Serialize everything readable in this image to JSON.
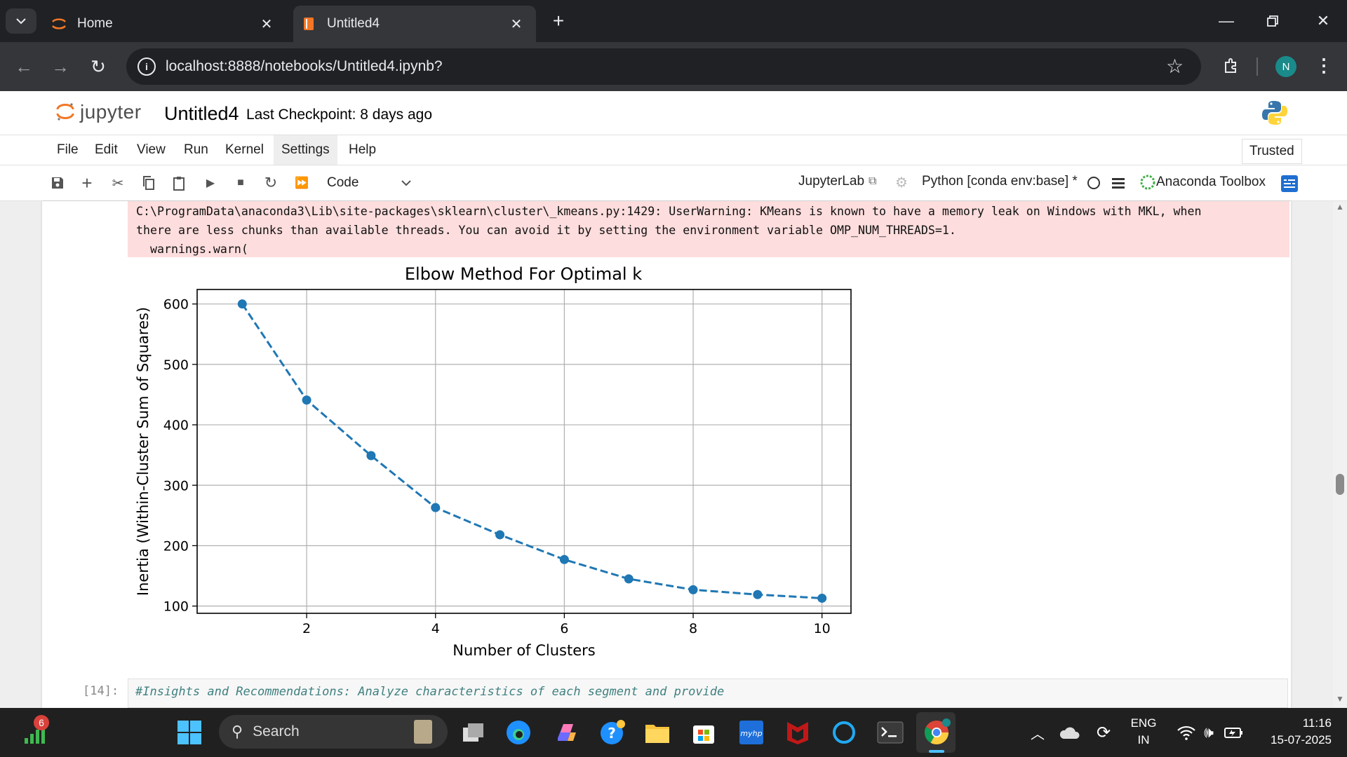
{
  "browser": {
    "tabs": [
      {
        "label": "Home",
        "active": false
      },
      {
        "label": "Untitled4",
        "active": true
      }
    ],
    "url": "localhost:8888/notebooks/Untitled4.ipynb?",
    "profile_initial": "N"
  },
  "jupyter": {
    "logo_text": "jupyter",
    "notebook_title": "Untitled4",
    "checkpoint": "Last Checkpoint: 8 days ago",
    "menu": [
      "File",
      "Edit",
      "View",
      "Run",
      "Kernel",
      "Settings",
      "Help"
    ],
    "highlighted_menu": "Settings",
    "trusted": "Trusted",
    "cell_type": "Code",
    "jupyterlab_link": "JupyterLab",
    "kernel": "Python [conda env:base] *",
    "anaconda_toolbox": "Anaconda Toolbox"
  },
  "output": {
    "warning_line1": "C:\\ProgramData\\anaconda3\\Lib\\site-packages\\sklearn\\cluster\\_kmeans.py:1429: UserWarning: KMeans is known to have a memory leak on Windows with MKL, when",
    "warning_line2": "there are less chunks than available threads. You can avoid it by setting the environment variable OMP_NUM_THREADS=1.",
    "warning_line3": "  warnings.warn("
  },
  "chart_data": {
    "type": "line",
    "title": "Elbow Method For Optimal k",
    "xlabel": "Number of Clusters",
    "ylabel": "Inertia (Within-Cluster Sum of Squares)",
    "x": [
      1,
      2,
      3,
      4,
      5,
      6,
      7,
      8,
      9,
      10
    ],
    "values": [
      600,
      441,
      349,
      263,
      218,
      177,
      145,
      127,
      119,
      113
    ],
    "xticks": [
      2,
      4,
      6,
      8,
      10
    ],
    "yticks": [
      100,
      200,
      300,
      400,
      500,
      600
    ],
    "xlim": [
      0.3,
      10.45
    ],
    "ylim": [
      88,
      624
    ],
    "grid": true,
    "line_style": "dashed",
    "marker": "o",
    "color": "#1f77b4"
  },
  "next_cell": {
    "prompt": "[14]:",
    "code": "#Insights and Recommendations: Analyze characteristics of each segment and provide"
  },
  "taskbar": {
    "notification_count": "6",
    "search_placeholder": "Search",
    "language": "ENG",
    "region": "IN",
    "time": "11:16",
    "date": "15-07-2025"
  }
}
